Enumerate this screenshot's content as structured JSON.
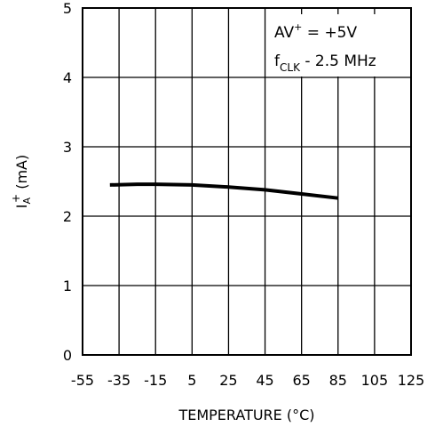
{
  "chart_data": {
    "type": "line",
    "title": "",
    "xlabel": "TEMPERATURE (°C)",
    "ylabel": {
      "main": "I",
      "superscript": "+",
      "subscript": "A",
      "unit": "(mA)"
    },
    "xlim": [
      -55,
      125
    ],
    "ylim": [
      0,
      5
    ],
    "x_ticks": [
      -55,
      -35,
      -15,
      5,
      25,
      45,
      65,
      85,
      105,
      125
    ],
    "y_ticks": [
      0,
      1,
      2,
      3,
      4,
      5
    ],
    "grid": true,
    "legend": "none",
    "annotations": [
      {
        "main": "AV",
        "sup": "+",
        "rest": " = +5V"
      },
      {
        "main": "f",
        "sub": "CLK",
        "rest": " - 2.5 MHz"
      }
    ],
    "series": [
      {
        "x": [
          -40,
          -25,
          -15,
          5,
          25,
          45,
          65,
          85
        ],
        "y": [
          2.45,
          2.46,
          2.46,
          2.45,
          2.42,
          2.38,
          2.32,
          2.26
        ]
      }
    ]
  },
  "colors": {
    "line": "#000000",
    "grid": "#000000",
    "background": "#ffffff"
  }
}
